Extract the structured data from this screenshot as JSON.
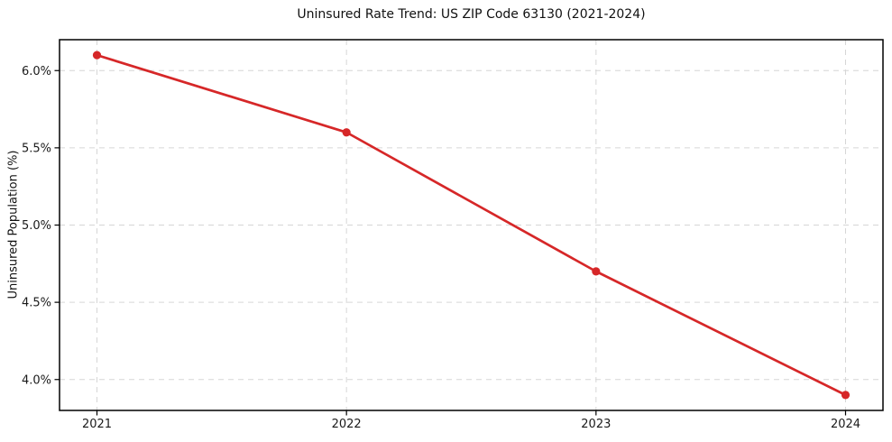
{
  "chart_data": {
    "type": "line",
    "title": "Uninsured Rate Trend: US ZIP Code 63130 (2021-2024)",
    "xlabel": "",
    "ylabel": "Uninsured Population (%)",
    "x": [
      2021,
      2022,
      2023,
      2024
    ],
    "values": [
      6.1,
      5.6,
      4.7,
      3.9
    ],
    "x_tick_labels": [
      "2021",
      "2022",
      "2023",
      "2024"
    ],
    "y_ticks": [
      4.0,
      4.5,
      5.0,
      5.5,
      6.0
    ],
    "y_tick_labels": [
      "4.0%",
      "4.5%",
      "5.0%",
      "5.5%",
      "6.0%"
    ],
    "xlim": [
      2020.85,
      2024.15
    ],
    "ylim": [
      3.8,
      6.2
    ],
    "grid": true,
    "grid_style": "dashed",
    "legend_position": "none",
    "marker": "circle",
    "line_color": "#d62728",
    "grid_color": "#d6d6d6",
    "spine_color": "#000000",
    "text_color": "#1a1a1a",
    "background": "#ffffff"
  }
}
